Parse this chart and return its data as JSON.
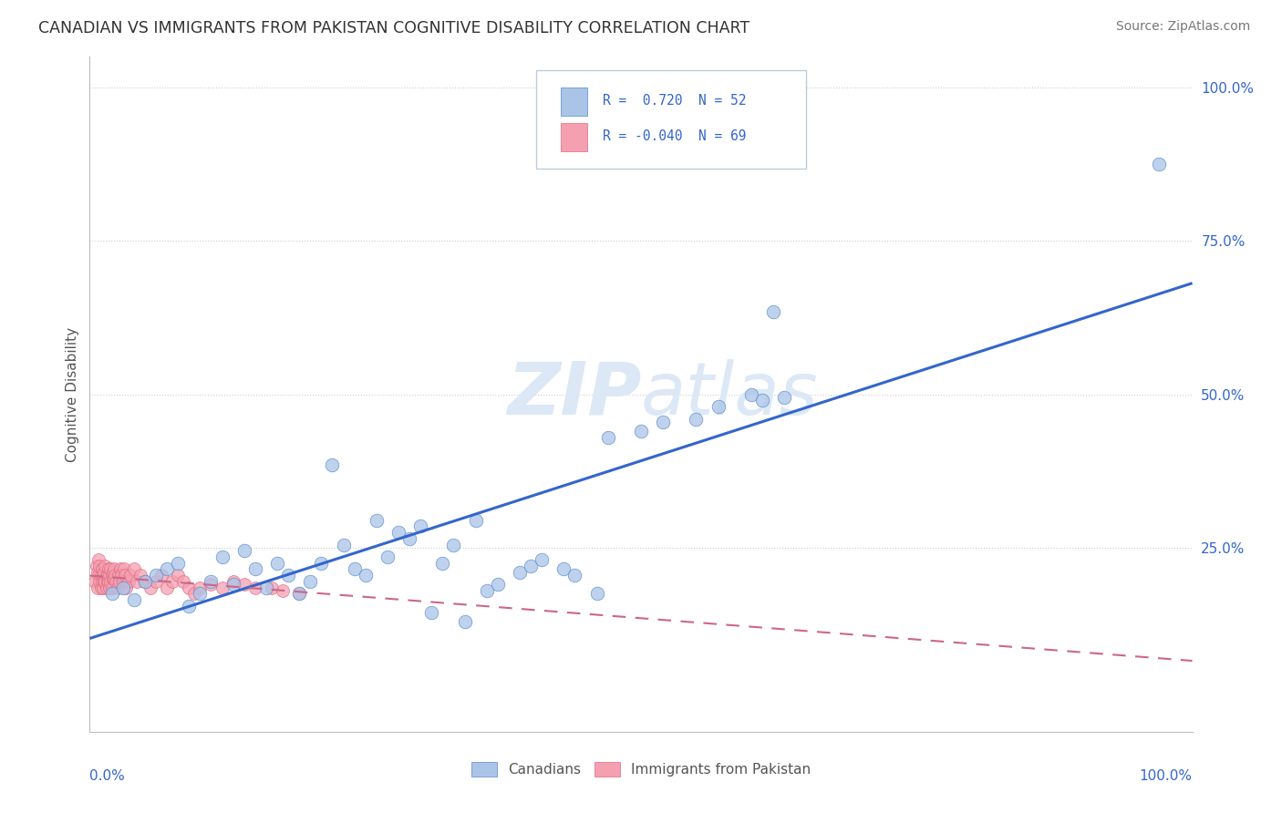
{
  "title": "CANADIAN VS IMMIGRANTS FROM PAKISTAN COGNITIVE DISABILITY CORRELATION CHART",
  "source": "Source: ZipAtlas.com",
  "ylabel": "Cognitive Disability",
  "legend_label1": "Canadians",
  "legend_label2": "Immigrants from Pakistan",
  "canadians_color": "#aac4e8",
  "pakistan_color": "#f4a0b0",
  "trend_blue": "#3366cc",
  "trend_pink": "#cc6688",
  "watermark_color": "#dce8f5",
  "canadians_x": [
    0.02,
    0.03,
    0.04,
    0.05,
    0.06,
    0.07,
    0.08,
    0.1,
    0.11,
    0.12,
    0.13,
    0.14,
    0.15,
    0.16,
    0.17,
    0.18,
    0.19,
    0.2,
    0.21,
    0.22,
    0.23,
    0.24,
    0.25,
    0.26,
    0.27,
    0.28,
    0.3,
    0.32,
    0.33,
    0.35,
    0.36,
    0.37,
    0.39,
    0.4,
    0.41,
    0.43,
    0.44,
    0.46,
    0.47,
    0.5,
    0.52,
    0.55,
    0.57,
    0.62,
    0.97,
    0.6,
    0.61,
    0.63,
    0.09,
    0.29,
    0.31,
    0.34
  ],
  "canadians_y": [
    0.175,
    0.185,
    0.165,
    0.195,
    0.205,
    0.215,
    0.225,
    0.175,
    0.195,
    0.235,
    0.19,
    0.245,
    0.215,
    0.185,
    0.225,
    0.205,
    0.175,
    0.195,
    0.225,
    0.385,
    0.255,
    0.215,
    0.205,
    0.295,
    0.235,
    0.275,
    0.285,
    0.225,
    0.255,
    0.295,
    0.18,
    0.19,
    0.21,
    0.22,
    0.23,
    0.215,
    0.205,
    0.175,
    0.43,
    0.44,
    0.455,
    0.46,
    0.48,
    0.635,
    0.875,
    0.5,
    0.49,
    0.495,
    0.155,
    0.265,
    0.145,
    0.13
  ],
  "pakistan_x": [
    0.005,
    0.006,
    0.007,
    0.007,
    0.008,
    0.008,
    0.009,
    0.009,
    0.01,
    0.01,
    0.011,
    0.011,
    0.012,
    0.012,
    0.013,
    0.013,
    0.014,
    0.014,
    0.015,
    0.015,
    0.016,
    0.016,
    0.017,
    0.017,
    0.018,
    0.018,
    0.019,
    0.019,
    0.02,
    0.02,
    0.021,
    0.021,
    0.022,
    0.022,
    0.023,
    0.024,
    0.025,
    0.026,
    0.027,
    0.028,
    0.029,
    0.03,
    0.031,
    0.032,
    0.033,
    0.035,
    0.037,
    0.04,
    0.043,
    0.046,
    0.05,
    0.055,
    0.06,
    0.065,
    0.07,
    0.075,
    0.08,
    0.085,
    0.09,
    0.095,
    0.1,
    0.11,
    0.12,
    0.13,
    0.14,
    0.15,
    0.165,
    0.175,
    0.19
  ],
  "pakistan_y": [
    0.195,
    0.22,
    0.21,
    0.185,
    0.23,
    0.205,
    0.195,
    0.22,
    0.185,
    0.205,
    0.195,
    0.215,
    0.205,
    0.185,
    0.195,
    0.21,
    0.22,
    0.195,
    0.205,
    0.185,
    0.195,
    0.205,
    0.215,
    0.195,
    0.205,
    0.185,
    0.195,
    0.215,
    0.205,
    0.185,
    0.2,
    0.21,
    0.2,
    0.215,
    0.205,
    0.195,
    0.185,
    0.205,
    0.195,
    0.215,
    0.205,
    0.195,
    0.215,
    0.205,
    0.185,
    0.195,
    0.205,
    0.215,
    0.195,
    0.205,
    0.195,
    0.185,
    0.195,
    0.205,
    0.185,
    0.195,
    0.205,
    0.195,
    0.185,
    0.175,
    0.185,
    0.19,
    0.185,
    0.195,
    0.19,
    0.185,
    0.185,
    0.18,
    0.175
  ],
  "figsize": [
    14.06,
    8.92
  ],
  "dpi": 100,
  "xlim": [
    0.0,
    1.0
  ],
  "ylim": [
    -0.05,
    1.05
  ]
}
